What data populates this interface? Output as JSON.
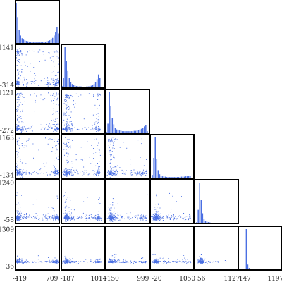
{
  "chart_data": {
    "type": "scatter",
    "kind": "corner-plot",
    "n_variables": 6,
    "color": "#4a6fe3",
    "frame_color": "#000000",
    "grid": false,
    "variables": [
      {
        "id": "v1",
        "range": [
          -560,
          960
        ],
        "x_ticks": [
          -419,
          709
        ],
        "y_ticks": []
      },
      {
        "id": "v2",
        "range": [
          -420,
          1260
        ],
        "x_ticks": [
          -187,
          1014
        ],
        "y_ticks": [
          -314,
          1141
        ]
      },
      {
        "id": "v3",
        "range": [
          -380,
          1240
        ],
        "x_ticks": [
          -150,
          999
        ],
        "y_ticks": [
          -272,
          1121
        ]
      },
      {
        "id": "v4",
        "range": [
          -250,
          1280
        ],
        "x_ticks": [
          -20,
          1050
        ],
        "y_ticks": [
          -134,
          1163
        ]
      },
      {
        "id": "v5",
        "range": [
          -180,
          1350
        ],
        "x_ticks": [
          56,
          1127
        ],
        "y_ticks": [
          -58,
          1240
        ]
      },
      {
        "id": "v6",
        "range": [
          -80,
          1420
        ],
        "x_ticks": [
          147,
          1197
        ],
        "y_ticks": [
          36,
          1309
        ]
      }
    ],
    "histograms": [
      {
        "variable": "v1",
        "bin_edges_range": [
          -560,
          960
        ],
        "counts": [
          120,
          78,
          40,
          24,
          16,
          12,
          10,
          8,
          7,
          6,
          5,
          5,
          4,
          4,
          4,
          4,
          4,
          4,
          5,
          5,
          6,
          7,
          8,
          10,
          13,
          17,
          24,
          34,
          48,
          30
        ]
      },
      {
        "variable": "v2",
        "bin_edges_range": [
          -420,
          1260
        ],
        "counts": [
          6,
          30,
          120,
          80,
          52,
          30,
          18,
          12,
          9,
          7,
          6,
          5,
          5,
          5,
          4,
          4,
          4,
          5,
          5,
          6,
          7,
          9,
          12,
          17,
          26,
          40,
          30,
          4,
          0,
          0
        ]
      },
      {
        "variable": "v3",
        "bin_edges_range": [
          -380,
          1240
        ],
        "counts": [
          4,
          28,
          120,
          80,
          44,
          26,
          16,
          11,
          9,
          8,
          7,
          6,
          6,
          6,
          6,
          6,
          6,
          6,
          6,
          7,
          7,
          8,
          9,
          11,
          13,
          16,
          20,
          24,
          6,
          0
        ]
      },
      {
        "variable": "v4",
        "bin_edges_range": [
          -250,
          1280
        ],
        "counts": [
          2,
          10,
          60,
          120,
          56,
          24,
          12,
          8,
          6,
          5,
          5,
          4,
          4,
          4,
          4,
          4,
          4,
          4,
          4,
          4,
          4,
          5,
          5,
          5,
          6,
          6,
          7,
          8,
          2,
          0
        ]
      },
      {
        "variable": "v5",
        "bin_edges_range": [
          -180,
          1350
        ],
        "counts": [
          0,
          4,
          40,
          120,
          70,
          30,
          14,
          8,
          5,
          4,
          3,
          2,
          2,
          2,
          1,
          1,
          1,
          1,
          1,
          1,
          1,
          1,
          0,
          0,
          0,
          0,
          0,
          0,
          0,
          0
        ]
      },
      {
        "variable": "v6",
        "bin_edges_range": [
          -80,
          1420
        ],
        "counts": [
          0,
          0,
          0,
          0,
          4,
          120,
          16,
          6,
          2,
          1,
          1,
          0,
          0,
          0,
          0,
          0,
          0,
          0,
          0,
          0,
          0,
          0,
          0,
          0,
          0,
          0,
          0,
          0,
          0,
          0
        ]
      }
    ],
    "scatter_panels": [
      {
        "x": "v1",
        "y": "v2"
      },
      {
        "x": "v1",
        "y": "v3"
      },
      {
        "x": "v1",
        "y": "v4"
      },
      {
        "x": "v1",
        "y": "v5"
      },
      {
        "x": "v1",
        "y": "v6"
      },
      {
        "x": "v2",
        "y": "v3"
      },
      {
        "x": "v2",
        "y": "v4"
      },
      {
        "x": "v2",
        "y": "v5"
      },
      {
        "x": "v2",
        "y": "v6"
      },
      {
        "x": "v3",
        "y": "v4"
      },
      {
        "x": "v3",
        "y": "v5"
      },
      {
        "x": "v3",
        "y": "v6"
      },
      {
        "x": "v4",
        "y": "v5"
      },
      {
        "x": "v4",
        "y": "v6"
      },
      {
        "x": "v5",
        "y": "v6"
      }
    ]
  }
}
